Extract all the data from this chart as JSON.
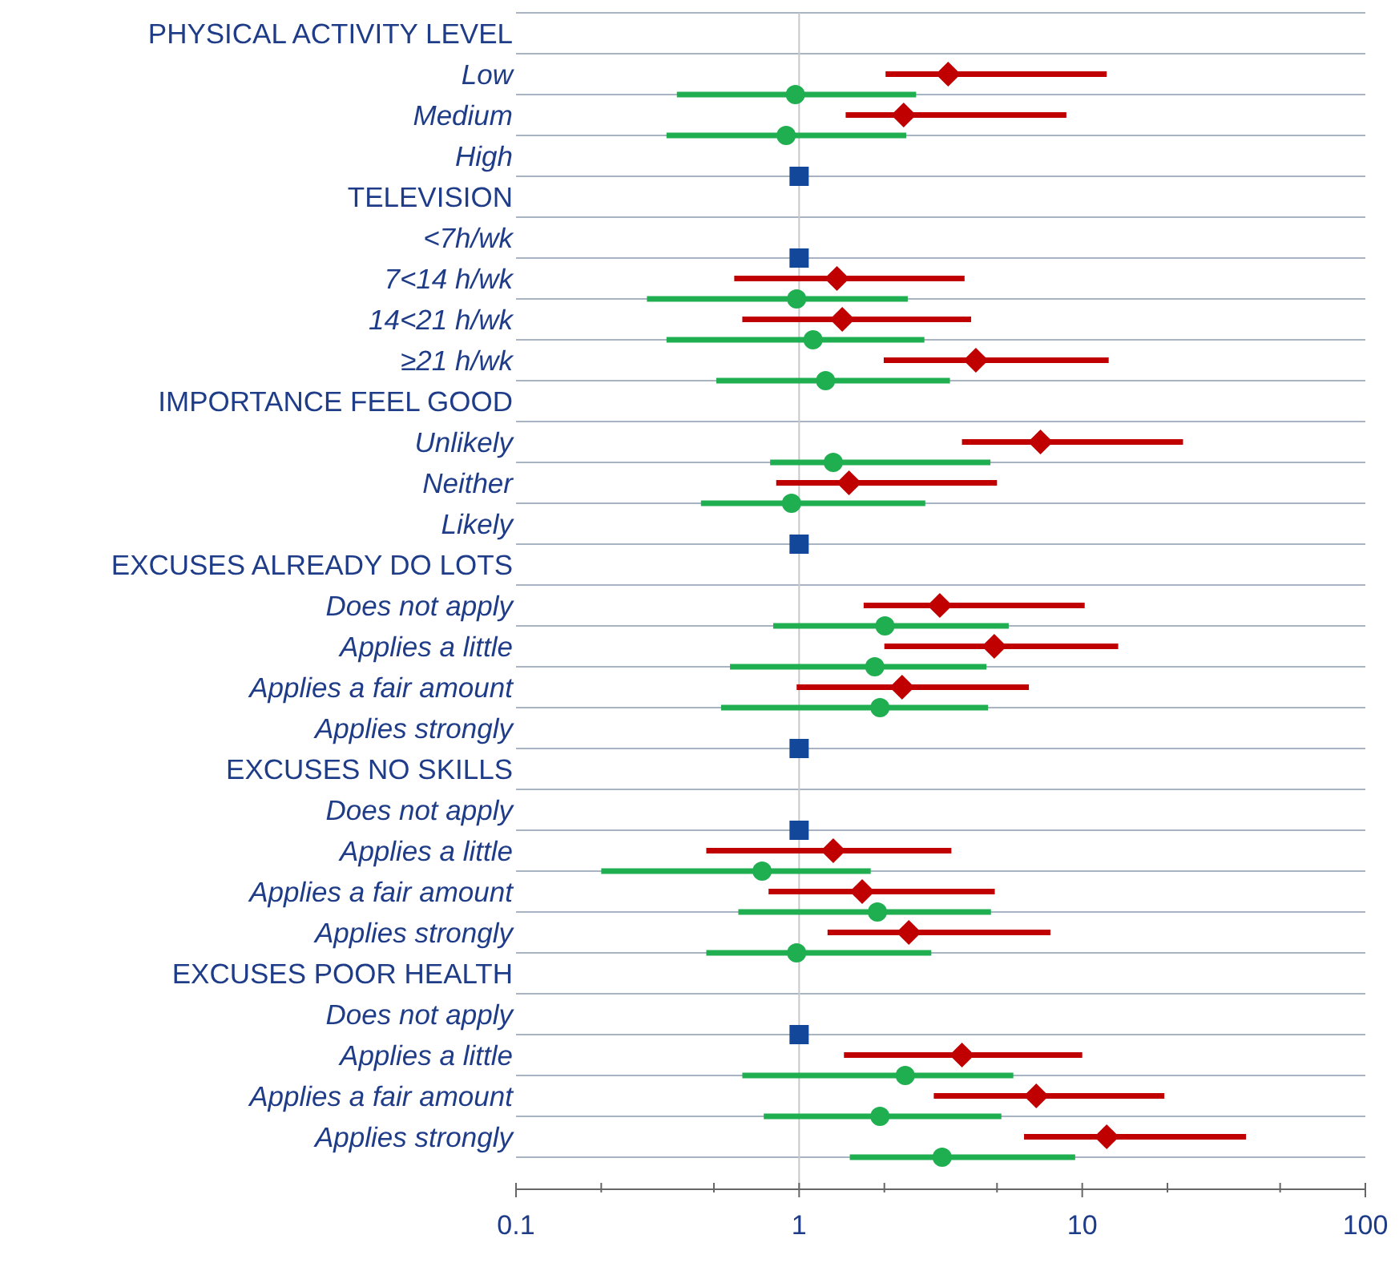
{
  "chart_data": {
    "type": "scatter",
    "orientation": "horizontal",
    "log": "x",
    "grid": "y",
    "categories": [
      "PHYSICAL ACTIVITY LEVEL",
      "Low",
      "Medium",
      "High",
      "TELEVISION",
      "<7h/wk",
      "7<14 h/wk",
      "14<21 h/wk",
      "≥21 h/wk",
      "IMPORTANCE FEEL GOOD",
      "Unlikely",
      "Neither",
      "Likely",
      "EXCUSES ALREADY DO LOTS",
      "Does not apply",
      "Applies a little",
      "Applies a fair amount",
      "Applies strongly",
      "EXCUSES NO SKILLS",
      "Does not apply",
      "Applies a little",
      "Applies a fair amount",
      "Applies strongly",
      "EXCUSES POOR HEALTH",
      "Does not apply",
      "Applies a little",
      "Applies a fair amount",
      "Applies strongly"
    ],
    "xlim": [
      0.1,
      100
    ],
    "xticks": [
      0.1,
      {
        "value": 0.2,
        "label": null
      },
      {
        "value": 0.5,
        "label": null
      },
      1,
      {
        "value": 2,
        "label": null
      },
      {
        "value": 5,
        "label": null
      },
      10,
      {
        "value": 20,
        "label": null
      },
      {
        "value": 50,
        "label": null
      },
      100
    ],
    "ref_lines": [
      {
        "axis": "x",
        "value": 1,
        "color": "#c8c8c8"
      }
    ],
    "series": [
      {
        "color": "#c00000",
        "marker": "diamond",
        "values": [
          null,
          3.36,
          2.34,
          null,
          null,
          null,
          1.36,
          1.42,
          4.21,
          null,
          7.12,
          1.5,
          null,
          null,
          3.14,
          4.89,
          2.31,
          null,
          null,
          null,
          1.32,
          1.67,
          2.44,
          null,
          null,
          3.76,
          6.88,
          12.2
        ],
        "errors": [
          null,
          [
            2.02,
            12.2
          ],
          [
            1.46,
            8.79
          ],
          null,
          null,
          null,
          [
            0.59,
            3.84
          ],
          [
            0.63,
            4.05
          ],
          [
            1.99,
            12.4
          ],
          null,
          [
            3.76,
            22.7
          ],
          [
            0.83,
            5.0
          ],
          null,
          null,
          [
            1.69,
            10.2
          ],
          [
            2.0,
            13.4
          ],
          [
            0.98,
            6.48
          ],
          null,
          null,
          null,
          [
            0.47,
            3.45
          ],
          [
            0.78,
            4.91
          ],
          [
            1.26,
            7.72
          ],
          null,
          null,
          [
            1.44,
            10.0
          ],
          [
            2.99,
            19.5
          ],
          [
            6.23,
            37.9
          ]
        ]
      },
      {
        "color": "#1fae50",
        "marker": "circle",
        "values": [
          null,
          0.97,
          0.9,
          null,
          null,
          null,
          0.98,
          1.12,
          1.24,
          null,
          1.32,
          0.94,
          null,
          null,
          2.01,
          1.85,
          1.93,
          null,
          null,
          null,
          0.74,
          1.89,
          0.98,
          null,
          null,
          2.37,
          1.93,
          3.2
        ],
        "errors": [
          null,
          [
            0.37,
            2.59
          ],
          [
            0.34,
            2.39
          ],
          null,
          null,
          null,
          [
            0.29,
            2.42
          ],
          [
            0.34,
            2.77
          ],
          [
            0.51,
            3.41
          ],
          null,
          [
            0.79,
            4.74
          ],
          [
            0.45,
            2.79
          ],
          null,
          null,
          [
            0.81,
            5.5
          ],
          [
            0.57,
            4.59
          ],
          [
            0.53,
            4.65
          ],
          null,
          null,
          null,
          [
            0.2,
            1.79
          ],
          [
            0.61,
            4.76
          ],
          [
            0.47,
            2.93
          ],
          null,
          null,
          [
            0.63,
            5.71
          ],
          [
            0.75,
            5.18
          ],
          [
            1.51,
            9.44
          ]
        ]
      },
      {
        "color": "#12479a",
        "marker": "square",
        "values": [
          null,
          null,
          null,
          1,
          null,
          1,
          null,
          null,
          null,
          null,
          null,
          null,
          1,
          null,
          null,
          null,
          null,
          1,
          null,
          1,
          null,
          null,
          null,
          null,
          1,
          null,
          null,
          null
        ]
      }
    ]
  }
}
